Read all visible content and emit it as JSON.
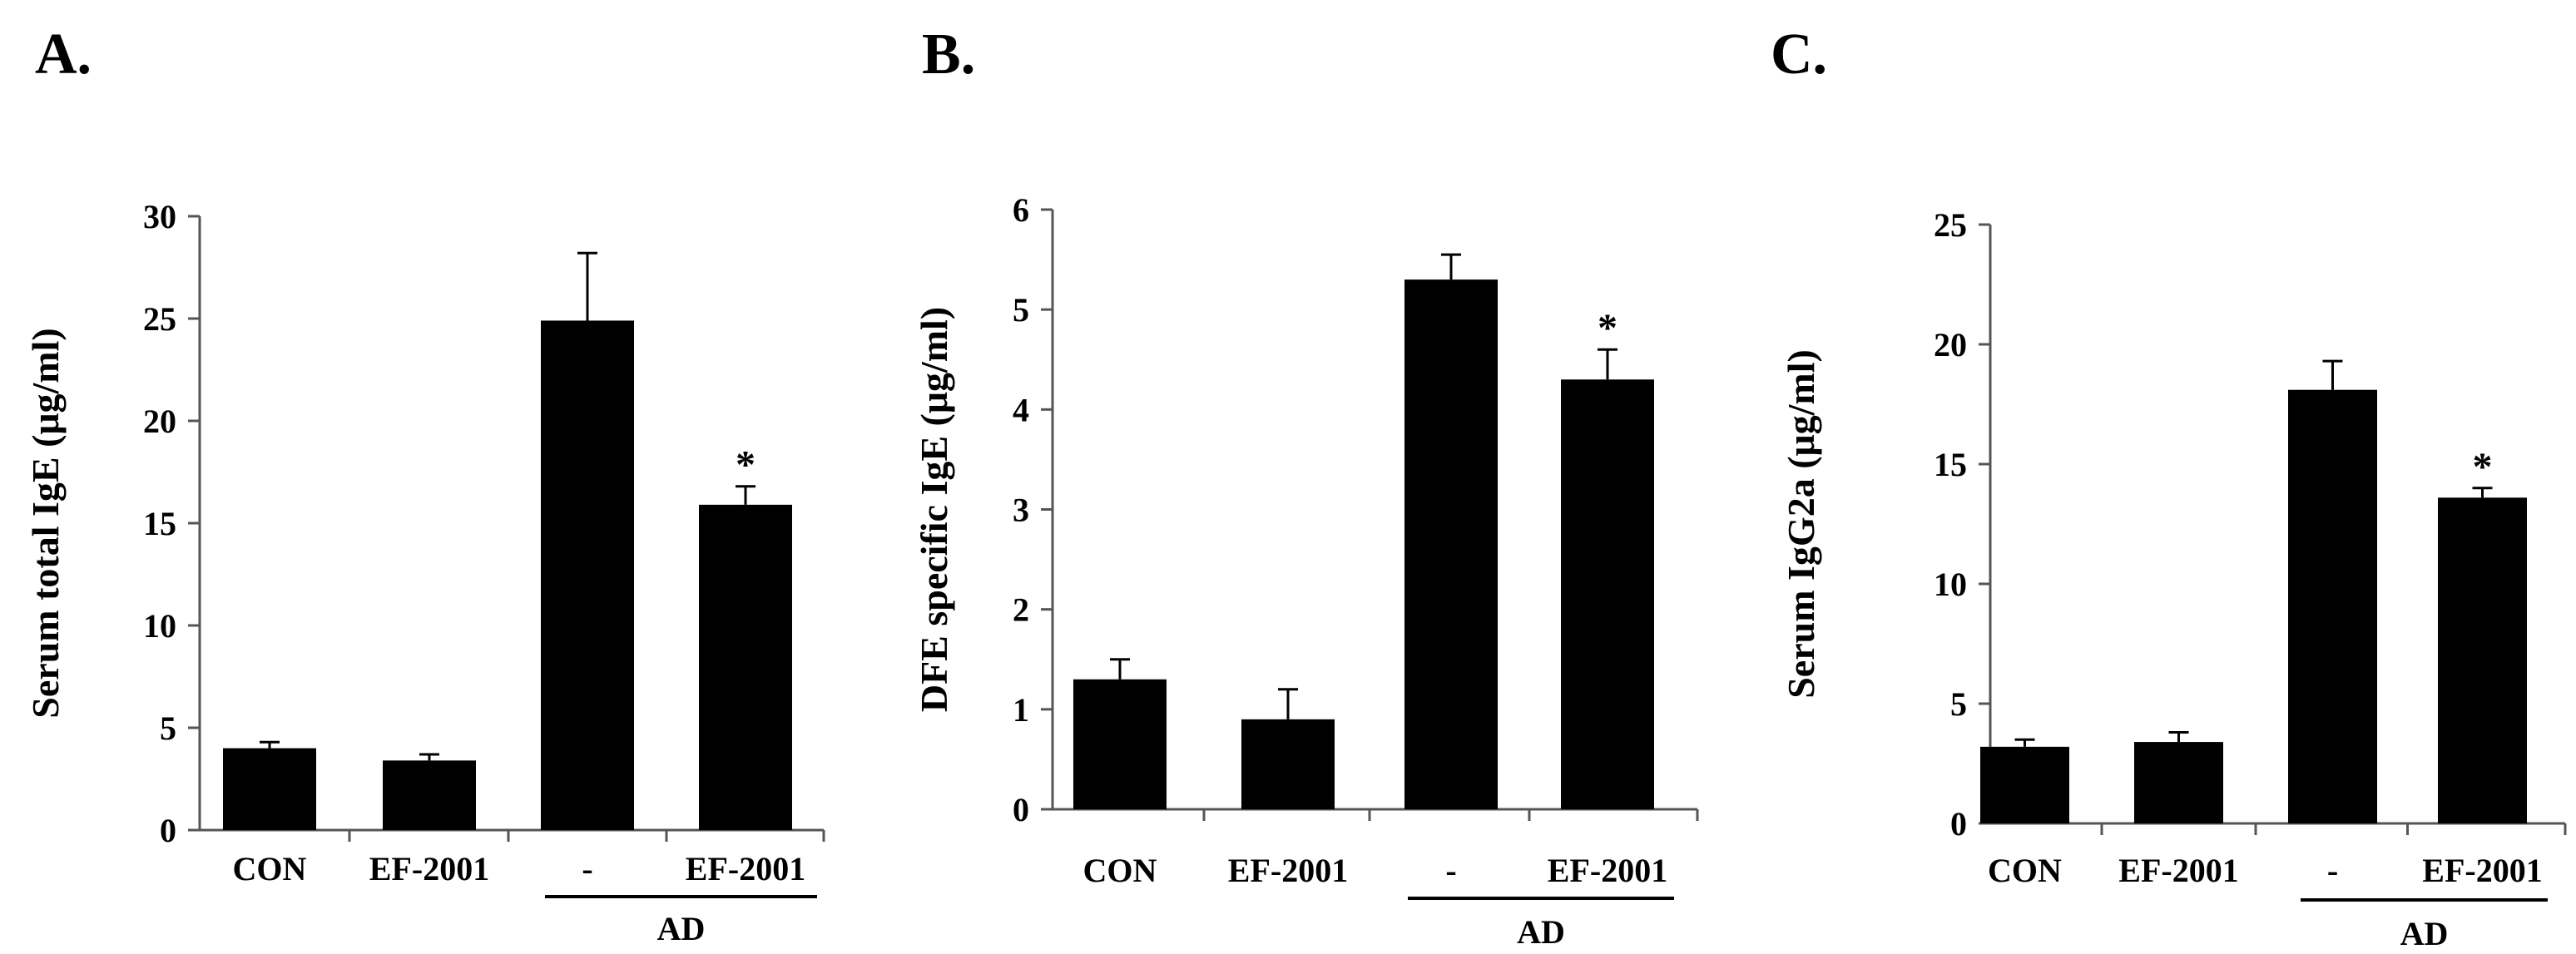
{
  "chart_data": [
    {
      "panel": "A.",
      "type": "bar",
      "ylabel": "Serum total IgE (μg/ml)",
      "ylim": [
        0,
        30
      ],
      "yticks": [
        0,
        5,
        10,
        15,
        20,
        25,
        30
      ],
      "categories": [
        "CON",
        "EF-2001",
        "-",
        "EF-2001"
      ],
      "values": [
        4.0,
        3.4,
        24.9,
        15.9
      ],
      "errors": [
        0.3,
        0.3,
        3.3,
        0.9
      ],
      "significance": [
        "",
        "",
        "",
        "*"
      ],
      "group_label": "AD",
      "group_span": [
        2,
        3
      ]
    },
    {
      "panel": "B.",
      "type": "bar",
      "ylabel": "DFE specific IgE (μg/ml)",
      "ylim": [
        0,
        6
      ],
      "yticks": [
        0,
        1,
        2,
        3,
        4,
        5,
        6
      ],
      "categories": [
        "CON",
        "EF-2001",
        "-",
        "EF-2001"
      ],
      "values": [
        1.3,
        0.9,
        5.3,
        4.3
      ],
      "errors": [
        0.2,
        0.3,
        0.25,
        0.3
      ],
      "significance": [
        "",
        "",
        "",
        "*"
      ],
      "group_label": "AD",
      "group_span": [
        2,
        3
      ]
    },
    {
      "panel": "C.",
      "type": "bar",
      "ylabel": "Serum IgG2a (μg/ml)",
      "ylim": [
        0,
        25
      ],
      "yticks": [
        0,
        5,
        10,
        15,
        20,
        25
      ],
      "categories": [
        "CON",
        "EF-2001",
        "-",
        "EF-2001"
      ],
      "values": [
        3.2,
        3.4,
        18.1,
        13.6
      ],
      "errors": [
        0.3,
        0.4,
        1.2,
        0.4
      ],
      "significance": [
        "",
        "",
        "",
        "*"
      ],
      "group_label": "AD",
      "group_span": [
        2,
        3
      ]
    }
  ]
}
